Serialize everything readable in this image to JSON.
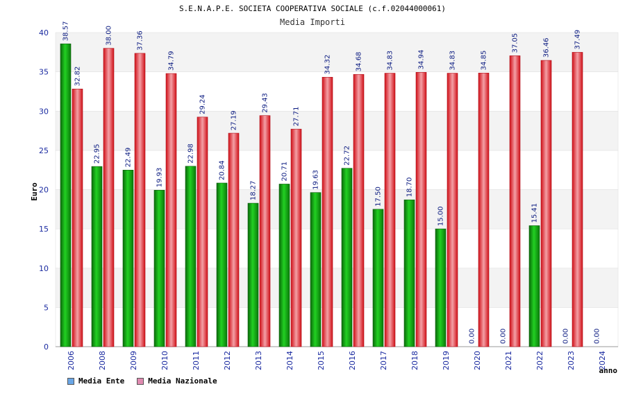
{
  "header": {
    "title": "S.E.N.A.P.E. SOCIETA COOPERATIVA SOCIALE (c.f.02044000061)",
    "subtitle": "Media Importi"
  },
  "chart_data": {
    "type": "bar",
    "title": "S.E.N.A.P.E. SOCIETA COOPERATIVA SOCIALE (c.f.02044000061)",
    "subtitle": "Media Importi",
    "xlabel": "anno",
    "ylabel": "Euro",
    "ylim": [
      0,
      40
    ],
    "yticks": [
      0,
      5,
      10,
      15,
      20,
      25,
      30,
      35,
      40
    ],
    "grid": "horizontal bands",
    "legend_position": "bottom-left",
    "categories": [
      "2006",
      "2008",
      "2009",
      "2010",
      "2011",
      "2012",
      "2013",
      "2014",
      "2015",
      "2016",
      "2017",
      "2018",
      "2019",
      "2020",
      "2021",
      "2022",
      "2023",
      "2024"
    ],
    "series": [
      {
        "name": "Media Ente",
        "legend_color": "#6aa6e6",
        "bar_color": "#11b011",
        "values": [
          38.57,
          22.95,
          22.49,
          19.93,
          22.98,
          20.84,
          18.27,
          20.71,
          19.63,
          22.72,
          17.5,
          18.7,
          15.0,
          0.0,
          0.0,
          15.41,
          0.0,
          0.0
        ],
        "labels": [
          "38.57",
          "22.95",
          "22.49",
          "19.93",
          "22.98",
          "20.84",
          "18.27",
          "20.71",
          "19.63",
          "22.72",
          "17.50",
          "18.70",
          "15.00",
          "0.00",
          "0.00",
          "15.41",
          "0.00",
          "0.00"
        ]
      },
      {
        "name": "Media Nazionale",
        "legend_color": "#e08ab0",
        "bar_color": "#e0202a",
        "values": [
          32.82,
          38.0,
          37.36,
          34.79,
          29.24,
          27.19,
          29.43,
          27.71,
          34.32,
          34.68,
          34.83,
          34.94,
          34.83,
          34.85,
          37.05,
          36.46,
          37.49,
          null
        ],
        "labels": [
          "32.82",
          "38.00",
          "37.36",
          "34.79",
          "29.24",
          "27.19",
          "29.43",
          "27.71",
          "34.32",
          "34.68",
          "34.83",
          "34.94",
          "34.83",
          "34.85",
          "37.05",
          "36.46",
          "37.49",
          ""
        ]
      }
    ]
  }
}
